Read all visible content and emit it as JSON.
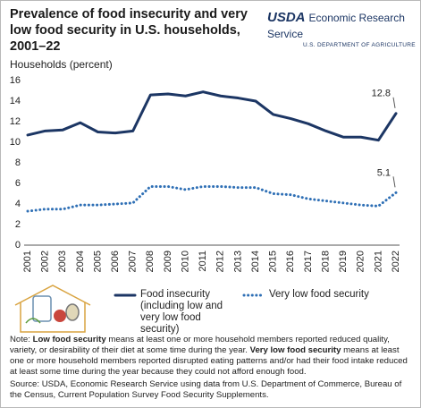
{
  "chart_data": {
    "type": "line",
    "title": "Prevalence of food insecurity and very low food security in U.S. households, 2001–22",
    "logo": {
      "mark": "USDA",
      "name": "Economic Research Service",
      "department": "U.S. DEPARTMENT OF AGRICULTURE"
    },
    "y_label": "Households (percent)",
    "categories": [
      "2001",
      "2002",
      "2003",
      "2004",
      "2005",
      "2006",
      "2007",
      "2008",
      "2009",
      "2010",
      "2011",
      "2012",
      "2013",
      "2014",
      "2015",
      "2016",
      "2017",
      "2018",
      "2019",
      "2020",
      "2021",
      "2022"
    ],
    "series": [
      {
        "name": "Food insecurity (including low and very low food security)",
        "color": "#1c3664",
        "style": "solid",
        "values": [
          10.7,
          11.1,
          11.2,
          11.9,
          11.0,
          10.9,
          11.1,
          14.6,
          14.7,
          14.5,
          14.9,
          14.5,
          14.3,
          14.0,
          12.7,
          12.3,
          11.8,
          11.1,
          10.5,
          10.5,
          10.2,
          12.8
        ]
      },
      {
        "name": "Very low food security",
        "color": "#2e6fb5",
        "style": "dotted",
        "values": [
          3.3,
          3.5,
          3.5,
          3.9,
          3.9,
          4.0,
          4.1,
          5.7,
          5.7,
          5.4,
          5.7,
          5.7,
          5.6,
          5.6,
          5.0,
          4.9,
          4.5,
          4.3,
          4.1,
          3.9,
          3.8,
          5.1
        ]
      }
    ],
    "ylim": [
      0,
      16
    ],
    "yticks": [
      0,
      2,
      4,
      6,
      8,
      10,
      12,
      14,
      16
    ],
    "grid": false,
    "note": [
      "Note: ",
      "Low food security",
      " means at least one or more household members reported reduced quality, variety, or desirability of their diet at some time during the year. ",
      "Very low food security",
      " means at least one or more household members reported disrupted eating patterns and/or had their food intake reduced at least some time during the year because they could not afford enough food."
    ],
    "source": "Source: USDA, Economic Research Service using data from U.S. Department of Commerce, Bureau of the Census, Current Population Survey Food Security Supplements."
  }
}
